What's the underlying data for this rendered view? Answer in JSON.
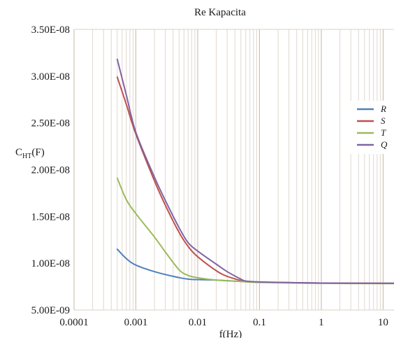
{
  "chart_data": {
    "type": "line",
    "title": "Re Kapacita",
    "xlabel": "f(Hz)",
    "ylabel": "C",
    "ylabel_sub": "HT",
    "ylabel_unit": "(F)",
    "x_scale": "log",
    "xlim": [
      0.0001,
      15
    ],
    "ylim": [
      5e-09,
      3.5e-08
    ],
    "grid": "vertical",
    "legend_position": "right",
    "x_ticks": [
      {
        "value": 0.0001,
        "label": "0.0001"
      },
      {
        "value": 0.001,
        "label": "0.001"
      },
      {
        "value": 0.01,
        "label": "0.01"
      },
      {
        "value": 0.1,
        "label": "0.1"
      },
      {
        "value": 1,
        "label": "1"
      },
      {
        "value": 10,
        "label": "10"
      }
    ],
    "y_ticks": [
      {
        "value": 5e-09,
        "label": "5.00E-09"
      },
      {
        "value": 1e-08,
        "label": "1.00E-08"
      },
      {
        "value": 1.5e-08,
        "label": "1.50E-08"
      },
      {
        "value": 2e-08,
        "label": "2.00E-08"
      },
      {
        "value": 2.5e-08,
        "label": "2.50E-08"
      },
      {
        "value": 3e-08,
        "label": "3.00E-08"
      },
      {
        "value": 3.5e-08,
        "label": "3.50E-08"
      }
    ],
    "series": [
      {
        "name": "R",
        "color": "#4f81bd",
        "x": [
          0.0005,
          0.0007,
          0.001,
          0.002,
          0.004,
          0.007,
          0.01,
          0.02,
          0.05,
          0.1,
          1,
          15
        ],
        "y": [
          1.15e-08,
          1.05e-08,
          9.8e-09,
          9.1e-09,
          8.6e-09,
          8.3e-09,
          8.25e-09,
          8.2e-09,
          8.05e-09,
          7.98e-09,
          7.88e-09,
          7.85e-09
        ]
      },
      {
        "name": "S",
        "color": "#c0504d",
        "x": [
          0.0005,
          0.0007,
          0.001,
          0.002,
          0.003,
          0.005,
          0.007,
          0.01,
          0.02,
          0.03,
          0.05,
          0.06,
          0.1,
          1,
          15
        ],
        "y": [
          2.99e-08,
          2.7e-08,
          2.38e-08,
          1.88e-08,
          1.62e-08,
          1.33e-08,
          1.18e-08,
          1.07e-08,
          9.2e-09,
          8.6e-09,
          8.15e-09,
          8.05e-09,
          7.98e-09,
          7.88e-09,
          7.85e-09
        ]
      },
      {
        "name": "T",
        "color": "#9bbb59",
        "x": [
          0.0005,
          0.0007,
          0.001,
          0.002,
          0.003,
          0.005,
          0.007,
          0.01,
          0.02,
          0.05,
          0.1,
          1,
          15
        ],
        "y": [
          1.91e-08,
          1.68e-08,
          1.53e-08,
          1.28e-08,
          1.12e-08,
          9.3e-09,
          8.7e-09,
          8.45e-09,
          8.2e-09,
          8.05e-09,
          7.95e-09,
          7.85e-09,
          7.82e-09
        ]
      },
      {
        "name": "Q",
        "color": "#8064a2",
        "x": [
          0.0005,
          0.0007,
          0.001,
          0.002,
          0.003,
          0.005,
          0.007,
          0.01,
          0.02,
          0.03,
          0.05,
          0.06,
          0.1,
          1,
          15
        ],
        "y": [
          3.18e-08,
          2.8e-08,
          2.4e-08,
          1.92e-08,
          1.67e-08,
          1.38e-08,
          1.22e-08,
          1.13e-08,
          9.9e-09,
          9.1e-09,
          8.3e-09,
          8.1e-09,
          8e-09,
          7.88e-09,
          7.85e-09
        ]
      }
    ]
  }
}
